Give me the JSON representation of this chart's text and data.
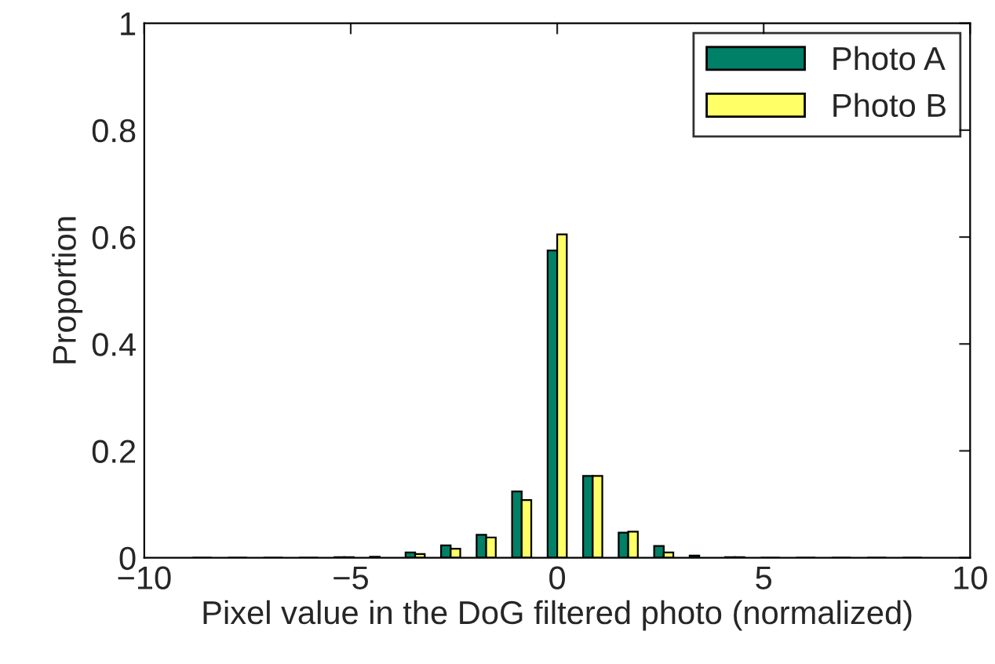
{
  "chart_data": {
    "type": "bar",
    "xlabel": "Pixel value in the DoG filtered photo (normalized)",
    "ylabel": "Proportion",
    "x": [
      -8.6,
      -7.74,
      -6.88,
      -6.02,
      -5.16,
      -4.3,
      -3.44,
      -2.58,
      -1.72,
      -0.86,
      0,
      0.86,
      1.72,
      2.58,
      3.44,
      4.3,
      5.16,
      6.02,
      6.88,
      7.74,
      8.6
    ],
    "series": [
      {
        "name": "Photo A",
        "color": "#008066",
        "values": [
          0,
          0,
          0,
          0,
          0.001,
          0.002,
          0.01,
          0.023,
          0.043,
          0.124,
          0.575,
          0.153,
          0.047,
          0.022,
          0.004,
          0.001,
          0,
          0,
          0,
          0,
          0
        ]
      },
      {
        "name": "Photo B",
        "color": "#ffff66",
        "values": [
          0,
          0,
          0,
          0,
          0.001,
          null,
          0.007,
          0.017,
          0.038,
          0.108,
          0.605,
          0.153,
          0.049,
          0.01,
          null,
          0.001,
          0,
          0,
          0,
          0,
          0
        ]
      }
    ],
    "xlim": [
      -10,
      10
    ],
    "xticks": [
      {
        "value": -10,
        "label": "−10"
      },
      {
        "value": -5,
        "label": "−5"
      },
      0,
      5,
      10
    ],
    "ylim": [
      0,
      1
    ],
    "yticks": [
      0,
      0.2,
      0.4,
      0.6,
      0.8,
      1
    ],
    "grid": false,
    "legend": "top right"
  }
}
